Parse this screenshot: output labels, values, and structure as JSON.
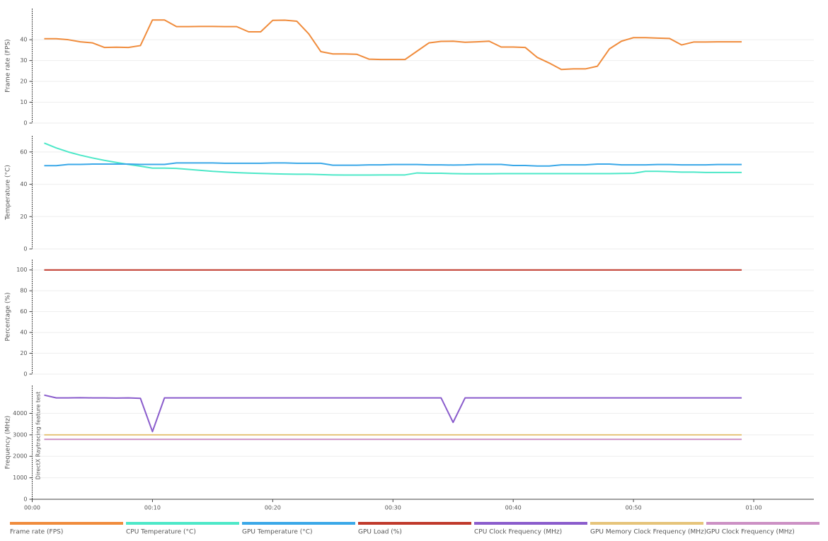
{
  "chart_data": [
    {
      "type": "line",
      "y_label": "Frame rate (FPS)",
      "x": [
        1,
        2,
        3,
        4,
        5,
        6,
        7,
        8,
        9,
        10,
        11,
        12,
        13,
        14,
        15,
        16,
        17,
        18,
        19,
        20,
        21,
        22,
        23,
        24,
        25,
        26,
        27,
        28,
        29,
        30,
        31,
        32,
        33,
        34,
        35,
        36,
        37,
        38,
        39,
        40,
        41,
        42,
        43,
        44,
        45,
        46,
        47,
        48,
        49,
        50,
        51,
        52,
        53,
        54,
        55,
        56,
        57,
        58,
        59
      ],
      "xlim": [
        0,
        65
      ],
      "ylim": [
        0,
        55
      ],
      "yticks": [
        0,
        10,
        20,
        30,
        40
      ],
      "grid": true,
      "series": [
        {
          "name": "Frame rate (FPS)",
          "color": "#f08c3c",
          "values": [
            40.5,
            40.5,
            40,
            39,
            38.5,
            36.3,
            36.4,
            36.3,
            37.2,
            49.5,
            49.5,
            46.3,
            46.3,
            46.4,
            46.4,
            46.3,
            46.3,
            43.8,
            43.8,
            49.3,
            49.4,
            48.9,
            42.8,
            34.3,
            33.2,
            33.2,
            33,
            30.7,
            30.5,
            30.5,
            30.5,
            34.5,
            38.5,
            39.2,
            39.3,
            38.8,
            39,
            39.3,
            36.5,
            36.5,
            36.3,
            31.5,
            28.8,
            25.7,
            26,
            26,
            27.3,
            35.6,
            39.3,
            41,
            41,
            40.8,
            40.6,
            37.5,
            38.9,
            38.9,
            39,
            39,
            39
          ]
        }
      ]
    },
    {
      "type": "line",
      "y_label": "Temperature (°C)",
      "x": [
        1,
        2,
        3,
        4,
        5,
        6,
        7,
        8,
        9,
        10,
        11,
        12,
        13,
        14,
        15,
        16,
        17,
        18,
        19,
        20,
        21,
        22,
        23,
        24,
        25,
        26,
        27,
        28,
        29,
        30,
        31,
        32,
        33,
        34,
        35,
        36,
        37,
        38,
        39,
        40,
        41,
        42,
        43,
        44,
        45,
        46,
        47,
        48,
        49,
        50,
        51,
        52,
        53,
        54,
        55,
        56,
        57,
        58,
        59
      ],
      "xlim": [
        0,
        65
      ],
      "ylim": [
        0,
        70
      ],
      "yticks": [
        0,
        20,
        40,
        60
      ],
      "grid": true,
      "series": [
        {
          "name": "CPU Temperature (°C)",
          "color": "#4de8c8",
          "values": [
            65.5,
            62.5,
            60,
            58,
            56.3,
            54.8,
            53.5,
            52.3,
            51.2,
            50,
            50,
            49.8,
            49.2,
            48.6,
            48,
            47.6,
            47.2,
            46.9,
            46.7,
            46.5,
            46.3,
            46.2,
            46.2,
            46,
            45.8,
            45.7,
            45.7,
            45.7,
            45.8,
            45.8,
            45.8,
            47,
            46.8,
            46.8,
            46.6,
            46.5,
            46.5,
            46.5,
            46.6,
            46.6,
            46.6,
            46.6,
            46.6,
            46.6,
            46.6,
            46.6,
            46.6,
            46.6,
            46.7,
            46.8,
            48,
            48,
            47.8,
            47.5,
            47.5,
            47.3,
            47.3,
            47.3,
            47.3
          ]
        },
        {
          "name": "GPU Temperature (°C)",
          "color": "#3aa8e8",
          "values": [
            51.5,
            51.5,
            52.3,
            52.3,
            52.5,
            52.5,
            52.5,
            52.5,
            52.3,
            52.3,
            52.3,
            53.2,
            53.2,
            53.2,
            53.2,
            53,
            53,
            53,
            53,
            53.2,
            53.2,
            53,
            53,
            53,
            51.8,
            51.8,
            51.8,
            52,
            52,
            52.2,
            52.2,
            52.2,
            52,
            52,
            51.9,
            52,
            52.3,
            52.3,
            52.3,
            51.6,
            51.6,
            51.3,
            51.3,
            52,
            52,
            52,
            52.5,
            52.5,
            52,
            52,
            52,
            52.2,
            52.2,
            52,
            52,
            52,
            52.2,
            52.2,
            52.2
          ]
        }
      ]
    },
    {
      "type": "line",
      "y_label": "Percentage (%)",
      "x": [
        1,
        2,
        3,
        4,
        5,
        6,
        7,
        8,
        9,
        10,
        11,
        12,
        13,
        14,
        15,
        16,
        17,
        18,
        19,
        20,
        21,
        22,
        23,
        24,
        25,
        26,
        27,
        28,
        29,
        30,
        31,
        32,
        33,
        34,
        35,
        36,
        37,
        38,
        39,
        40,
        41,
        42,
        43,
        44,
        45,
        46,
        47,
        48,
        49,
        50,
        51,
        52,
        53,
        54,
        55,
        56,
        57,
        58,
        59
      ],
      "xlim": [
        0,
        65
      ],
      "ylim": [
        0,
        110
      ],
      "yticks": [
        0,
        20,
        40,
        60,
        80,
        100
      ],
      "grid": true,
      "series": [
        {
          "name": "GPU Load (%)",
          "color": "#c0392b",
          "values": [
            100,
            100,
            100,
            100,
            100,
            100,
            100,
            100,
            100,
            100,
            100,
            100,
            100,
            100,
            100,
            100,
            100,
            100,
            100,
            100,
            100,
            100,
            100,
            100,
            100,
            100,
            100,
            100,
            100,
            100,
            100,
            100,
            100,
            100,
            100,
            100,
            100,
            100,
            100,
            100,
            100,
            100,
            100,
            100,
            100,
            100,
            100,
            100,
            100,
            100,
            100,
            100,
            100,
            100,
            100,
            100,
            100,
            100,
            100
          ]
        }
      ]
    },
    {
      "type": "line",
      "y_label": "Frequency (MHz)",
      "annotation": "DirectX Raytracing feature test",
      "x": [
        1,
        2,
        3,
        4,
        5,
        6,
        7,
        8,
        9,
        10,
        11,
        12,
        13,
        14,
        15,
        16,
        17,
        18,
        19,
        20,
        21,
        22,
        23,
        24,
        25,
        26,
        27,
        28,
        29,
        30,
        31,
        32,
        33,
        34,
        35,
        36,
        37,
        38,
        39,
        40,
        41,
        42,
        43,
        44,
        45,
        46,
        47,
        48,
        49,
        50,
        51,
        52,
        53,
        54,
        55,
        56,
        57,
        58,
        59
      ],
      "xlim": [
        0,
        65
      ],
      "ylim": [
        0,
        5300
      ],
      "yticks": [
        0,
        1000,
        2000,
        3000,
        4000
      ],
      "grid": true,
      "xticks": [
        {
          "value": 0,
          "label": "00:00"
        },
        {
          "value": 10,
          "label": "00:10"
        },
        {
          "value": 20,
          "label": "00:20"
        },
        {
          "value": 30,
          "label": "00:30"
        },
        {
          "value": 40,
          "label": "00:40"
        },
        {
          "value": 50,
          "label": "00:50"
        },
        {
          "value": 60,
          "label": "01:00"
        }
      ],
      "series": [
        {
          "name": "CPU Clock Frequency (MHz)",
          "color": "#8a5ccc",
          "values": [
            4850,
            4720,
            4720,
            4730,
            4720,
            4720,
            4710,
            4720,
            4700,
            3150,
            4720,
            4720,
            4720,
            4720,
            4720,
            4720,
            4720,
            4720,
            4720,
            4720,
            4720,
            4720,
            4720,
            4720,
            4720,
            4720,
            4720,
            4720,
            4720,
            4720,
            4720,
            4720,
            4720,
            4720,
            3580,
            4720,
            4720,
            4720,
            4720,
            4720,
            4720,
            4720,
            4720,
            4720,
            4720,
            4720,
            4720,
            4720,
            4720,
            4720,
            4720,
            4720,
            4720,
            4720,
            4720,
            4720,
            4720,
            4720,
            4720
          ]
        },
        {
          "name": "GPU Memory Clock Frequency (MHz)",
          "color": "#e6c47a",
          "values": [
            3000,
            3000,
            3000,
            3000,
            3000,
            3000,
            3000,
            3000,
            3000,
            3000,
            3000,
            3000,
            3000,
            3000,
            3000,
            3000,
            3000,
            3000,
            3000,
            3000,
            3000,
            3000,
            3000,
            3000,
            3000,
            3000,
            3000,
            3000,
            3000,
            3000,
            3000,
            3000,
            3000,
            3000,
            3000,
            3000,
            3000,
            3000,
            3000,
            3000,
            3000,
            3000,
            3000,
            3000,
            3000,
            3000,
            3000,
            3000,
            3000,
            3000,
            3000,
            3000,
            3000,
            3000,
            3000,
            3000,
            3000,
            3000,
            3000
          ]
        },
        {
          "name": "GPU Clock Frequency (MHz)",
          "color": "#cc90c4",
          "values": [
            2790,
            2790,
            2790,
            2790,
            2790,
            2790,
            2790,
            2790,
            2790,
            2790,
            2790,
            2790,
            2790,
            2790,
            2790,
            2790,
            2790,
            2790,
            2790,
            2790,
            2790,
            2790,
            2790,
            2790,
            2790,
            2790,
            2790,
            2790,
            2790,
            2790,
            2790,
            2790,
            2790,
            2790,
            2790,
            2790,
            2790,
            2790,
            2790,
            2790,
            2790,
            2790,
            2790,
            2790,
            2790,
            2790,
            2790,
            2790,
            2790,
            2790,
            2790,
            2790,
            2790,
            2790,
            2790,
            2790,
            2790,
            2790,
            2790
          ]
        }
      ]
    }
  ]
}
